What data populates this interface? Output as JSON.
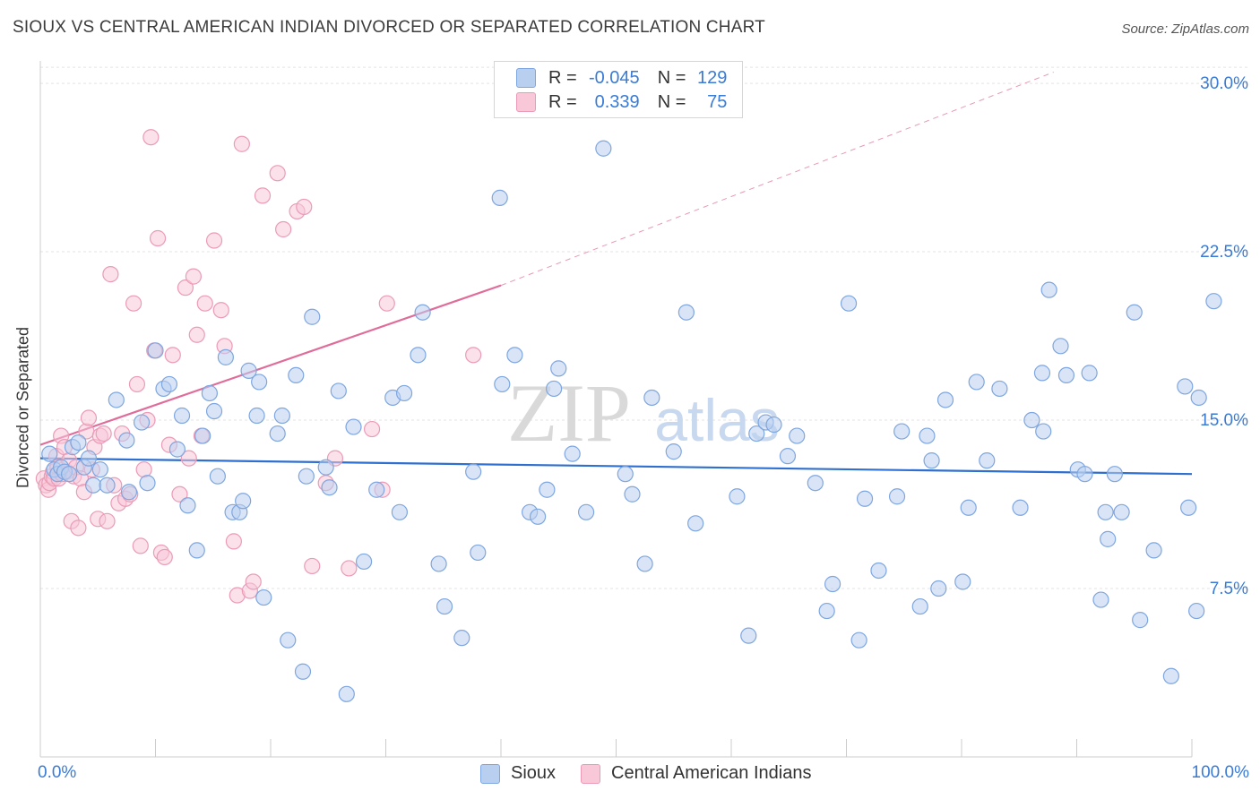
{
  "title": "SIOUX VS CENTRAL AMERICAN INDIAN DIVORCED OR SEPARATED CORRELATION CHART",
  "source": "Source: ZipAtlas.com",
  "legend": {
    "r_label": "R =",
    "n_label": "N =",
    "series": [
      {
        "name": "Sioux",
        "r": "-0.045",
        "n": "129"
      },
      {
        "name": "Central American Indians",
        "r": "0.339",
        "n": "75"
      }
    ]
  },
  "watermark": {
    "zip": "ZIP",
    "atlas": "atlas"
  },
  "colors": {
    "blue_fill": "#b9cff0",
    "blue_stroke": "#7ea6e0",
    "blue_line": "#2f6fcf",
    "pink_fill": "#f8c8d8",
    "pink_stroke": "#eb9bb7",
    "pink_line": "#e06c9a",
    "axis_label": "#3a7bd5"
  },
  "chart_data": {
    "type": "scatter",
    "title": "SIOUX VS CENTRAL AMERICAN INDIAN DIVORCED OR SEPARATED CORRELATION CHART",
    "xlabel": "",
    "ylabel": "Divorced or Separated",
    "xlim": [
      0,
      100
    ],
    "ylim": [
      0,
      31
    ],
    "x_tick_labels": [
      "0.0%",
      "100.0%"
    ],
    "y_ticks": [
      7.5,
      15.0,
      22.5,
      30.0
    ],
    "y_tick_labels": [
      "7.5%",
      "15.0%",
      "22.5%",
      "30.0%"
    ],
    "grid": true,
    "legend_position": "top-center",
    "series": [
      {
        "name": "Sioux",
        "color": "#b9cff0",
        "points": [
          [
            0.8,
            13.5
          ],
          [
            1.2,
            12.8
          ],
          [
            1.5,
            12.6
          ],
          [
            1.8,
            12.9
          ],
          [
            2.1,
            12.7
          ],
          [
            2.5,
            12.6
          ],
          [
            2.8,
            13.8
          ],
          [
            3.3,
            14
          ],
          [
            3.8,
            12.9
          ],
          [
            4.2,
            13.3
          ],
          [
            4.6,
            12.1
          ],
          [
            5.2,
            12.8
          ],
          [
            5.8,
            12.1
          ],
          [
            6.6,
            15.9
          ],
          [
            7.5,
            14.1
          ],
          [
            7.7,
            11.8
          ],
          [
            8.8,
            14.9
          ],
          [
            9.3,
            12.2
          ],
          [
            10,
            18.1
          ],
          [
            10.7,
            16.4
          ],
          [
            11.2,
            16.6
          ],
          [
            11.9,
            13.7
          ],
          [
            12.3,
            15.2
          ],
          [
            12.8,
            11.2
          ],
          [
            13.6,
            9.2
          ],
          [
            14.1,
            14.3
          ],
          [
            14.7,
            16.2
          ],
          [
            15.1,
            15.4
          ],
          [
            15.4,
            12.5
          ],
          [
            16.1,
            17.8
          ],
          [
            16.7,
            10.9
          ],
          [
            17.3,
            10.9
          ],
          [
            17.6,
            11.4
          ],
          [
            18.1,
            17.2
          ],
          [
            18.8,
            15.2
          ],
          [
            19,
            16.7
          ],
          [
            19.4,
            7.1
          ],
          [
            20.6,
            14.4
          ],
          [
            21,
            15.2
          ],
          [
            21.5,
            5.2
          ],
          [
            22.2,
            17
          ],
          [
            22.8,
            3.8
          ],
          [
            23.1,
            12.5
          ],
          [
            23.6,
            19.6
          ],
          [
            24.8,
            12.9
          ],
          [
            25.1,
            12
          ],
          [
            25.9,
            16.3
          ],
          [
            26.6,
            2.8
          ],
          [
            27.2,
            14.7
          ],
          [
            28.1,
            8.7
          ],
          [
            29.2,
            11.9
          ],
          [
            30.6,
            16
          ],
          [
            31.2,
            10.9
          ],
          [
            31.6,
            16.2
          ],
          [
            32.8,
            17.9
          ],
          [
            33.2,
            19.8
          ],
          [
            34.6,
            8.6
          ],
          [
            35.1,
            6.7
          ],
          [
            36.6,
            5.3
          ],
          [
            37.6,
            12.7
          ],
          [
            38,
            9.1
          ],
          [
            39.9,
            24.9
          ],
          [
            40.1,
            16.6
          ],
          [
            41.2,
            17.9
          ],
          [
            42.5,
            10.9
          ],
          [
            43.2,
            10.7
          ],
          [
            44,
            11.9
          ],
          [
            44.6,
            16.4
          ],
          [
            45,
            17.3
          ],
          [
            46.2,
            13.5
          ],
          [
            47.4,
            10.9
          ],
          [
            48.9,
            27.1
          ],
          [
            50.8,
            12.6
          ],
          [
            51.4,
            11.7
          ],
          [
            52.5,
            8.6
          ],
          [
            53.1,
            16
          ],
          [
            55,
            13.6
          ],
          [
            56.1,
            19.8
          ],
          [
            56.9,
            10.4
          ],
          [
            60.5,
            11.6
          ],
          [
            61.5,
            5.4
          ],
          [
            62.2,
            14.4
          ],
          [
            63,
            14.9
          ],
          [
            63.7,
            14.8
          ],
          [
            64.9,
            13.4
          ],
          [
            65.7,
            14.3
          ],
          [
            67.3,
            12.2
          ],
          [
            68.3,
            6.5
          ],
          [
            68.8,
            7.7
          ],
          [
            70.2,
            20.2
          ],
          [
            71.1,
            5.2
          ],
          [
            71.6,
            11.5
          ],
          [
            72.8,
            8.3
          ],
          [
            74.4,
            11.6
          ],
          [
            74.8,
            14.5
          ],
          [
            76.4,
            6.7
          ],
          [
            77,
            14.3
          ],
          [
            77.4,
            13.2
          ],
          [
            78,
            7.5
          ],
          [
            78.6,
            15.9
          ],
          [
            80.1,
            7.8
          ],
          [
            80.6,
            11.1
          ],
          [
            81.3,
            16.7
          ],
          [
            82.2,
            13.2
          ],
          [
            83.3,
            16.4
          ],
          [
            85.1,
            11.1
          ],
          [
            86.1,
            15
          ],
          [
            87,
            17.1
          ],
          [
            87.1,
            14.5
          ],
          [
            87.6,
            20.8
          ],
          [
            88.6,
            18.3
          ],
          [
            89.1,
            17
          ],
          [
            90.1,
            12.8
          ],
          [
            90.7,
            12.6
          ],
          [
            91.1,
            17.1
          ],
          [
            92.1,
            7
          ],
          [
            92.5,
            10.9
          ],
          [
            92.7,
            9.7
          ],
          [
            93.3,
            12.6
          ],
          [
            93.9,
            10.9
          ],
          [
            95,
            19.8
          ],
          [
            95.5,
            6.1
          ],
          [
            96.7,
            9.2
          ],
          [
            98.2,
            3.6
          ],
          [
            99.4,
            16.5
          ],
          [
            99.7,
            11.1
          ],
          [
            100.4,
            6.5
          ],
          [
            100.6,
            16
          ],
          [
            101.9,
            20.3
          ]
        ]
      },
      {
        "name": "Central American Indians",
        "color": "#f8c8d8",
        "points": [
          [
            0.3,
            12.4
          ],
          [
            0.5,
            12.1
          ],
          [
            0.7,
            11.9
          ],
          [
            0.8,
            12.2
          ],
          [
            1,
            12.5
          ],
          [
            1.1,
            12.7
          ],
          [
            1.2,
            12.4
          ],
          [
            1.4,
            13.4
          ],
          [
            1.5,
            12.9
          ],
          [
            1.6,
            12.4
          ],
          [
            1.8,
            14.3
          ],
          [
            1.9,
            12.6
          ],
          [
            2.1,
            13.8
          ],
          [
            2.3,
            12.7
          ],
          [
            2.5,
            13.2
          ],
          [
            2.7,
            10.5
          ],
          [
            2.9,
            12.5
          ],
          [
            3.1,
            12.9
          ],
          [
            3.3,
            10.2
          ],
          [
            3.5,
            12.4
          ],
          [
            3.8,
            11.8
          ],
          [
            4,
            14.5
          ],
          [
            4.2,
            15.1
          ],
          [
            4.5,
            12.8
          ],
          [
            4.7,
            13.8
          ],
          [
            5,
            10.6
          ],
          [
            5.2,
            14.3
          ],
          [
            5.5,
            14.4
          ],
          [
            5.8,
            10.5
          ],
          [
            6.1,
            21.5
          ],
          [
            6.4,
            12.1
          ],
          [
            6.8,
            11.3
          ],
          [
            7.1,
            14.4
          ],
          [
            7.4,
            11.5
          ],
          [
            7.8,
            11.7
          ],
          [
            8.1,
            20.2
          ],
          [
            8.4,
            16.6
          ],
          [
            8.7,
            9.4
          ],
          [
            9,
            12.8
          ],
          [
            9.3,
            15
          ],
          [
            9.6,
            27.6
          ],
          [
            9.9,
            18.1
          ],
          [
            10.2,
            23.1
          ],
          [
            10.5,
            9.1
          ],
          [
            10.8,
            8.9
          ],
          [
            11.2,
            13.9
          ],
          [
            11.5,
            17.9
          ],
          [
            12.1,
            11.7
          ],
          [
            12.6,
            20.9
          ],
          [
            12.9,
            13.3
          ],
          [
            13.3,
            21.4
          ],
          [
            13.6,
            18.8
          ],
          [
            14,
            14.3
          ],
          [
            14.3,
            20.2
          ],
          [
            15.1,
            23
          ],
          [
            15.7,
            19.9
          ],
          [
            16,
            18.3
          ],
          [
            16.8,
            9.6
          ],
          [
            17.1,
            7.2
          ],
          [
            17.5,
            27.3
          ],
          [
            18.2,
            7.4
          ],
          [
            18.5,
            7.8
          ],
          [
            19.3,
            25
          ],
          [
            20.6,
            26
          ],
          [
            21.1,
            23.5
          ],
          [
            22.3,
            24.3
          ],
          [
            22.9,
            24.5
          ],
          [
            23.6,
            8.5
          ],
          [
            24.8,
            12.2
          ],
          [
            25.6,
            13.3
          ],
          [
            26.8,
            8.4
          ],
          [
            28.8,
            14.6
          ],
          [
            29.7,
            11.9
          ],
          [
            30.1,
            20.2
          ],
          [
            37.6,
            17.9
          ]
        ]
      }
    ],
    "trend_lines": [
      {
        "series": "Sioux",
        "x": [
          0,
          100
        ],
        "y": [
          13.3,
          12.6
        ]
      },
      {
        "series": "Central American Indians",
        "x": [
          0,
          40
        ],
        "y": [
          13.9,
          21.0
        ],
        "dashed_extension_to": [
          88,
          30.5
        ]
      }
    ]
  }
}
